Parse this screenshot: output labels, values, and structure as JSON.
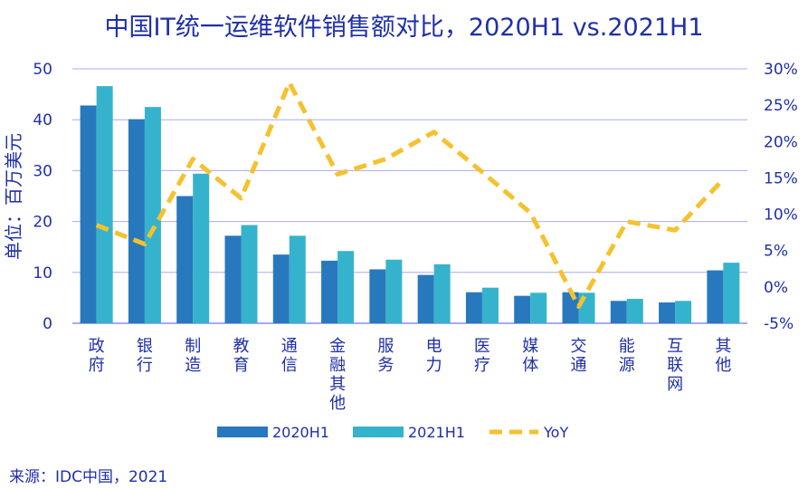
{
  "chart_data": {
    "type": "bar",
    "title": "中国IT统一运维软件销售额对比，2020H1 vs.2021H1",
    "ylabel": "单位：百万美元",
    "ylim": [
      0,
      50
    ],
    "y_ticks": [
      "0",
      "10",
      "20",
      "30",
      "40",
      "50"
    ],
    "y2lim": [
      -5,
      30
    ],
    "y2_ticks": [
      "-5%",
      "0%",
      "5%",
      "10%",
      "15%",
      "20%",
      "25%",
      "30%"
    ],
    "categories": [
      "政府",
      "银行",
      "制造",
      "教育",
      "通信",
      "金融其他",
      "服务",
      "电力",
      "医疗",
      "媒体",
      "交通",
      "能源",
      "互联网",
      "其他"
    ],
    "series": [
      {
        "name": "2020H1",
        "color": "#2878be",
        "values": [
          42.8,
          40.1,
          25.0,
          17.2,
          13.5,
          12.3,
          10.6,
          9.5,
          6.1,
          5.4,
          6.1,
          4.4,
          4.1,
          10.4
        ]
      },
      {
        "name": "2021H1",
        "color": "#36b3cc",
        "values": [
          46.6,
          42.5,
          29.4,
          19.3,
          17.2,
          14.2,
          12.5,
          11.6,
          7.0,
          6.0,
          6.0,
          4.8,
          4.4,
          11.9
        ]
      },
      {
        "name": "YoY",
        "color": "#f5c12e",
        "axis": "secondary",
        "values": [
          8.5,
          5.9,
          17.6,
          12.2,
          28.1,
          15.5,
          17.6,
          21.3,
          15.8,
          10.2,
          -2.7,
          9.0,
          7.8,
          14.8
        ]
      }
    ],
    "legend": "bottom"
  },
  "source": "来源：IDC中国，2021"
}
